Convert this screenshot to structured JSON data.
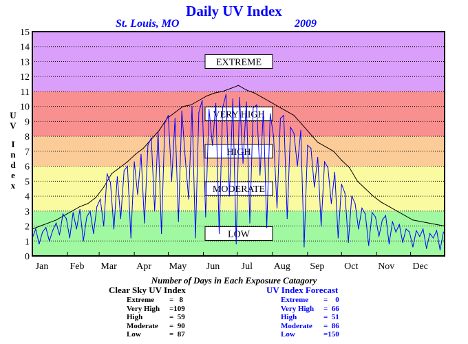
{
  "header": {
    "title": "Daily UV Index",
    "location": "St. Louis, MO",
    "year": "2009"
  },
  "axis": {
    "ylabel_letters": [
      "U",
      "V",
      "I",
      "n",
      "d",
      "e",
      "x"
    ]
  },
  "categories_legend": [
    {
      "label": "EXTREME",
      "y": 13
    },
    {
      "label": "VERY HIGH",
      "y": 9.5
    },
    {
      "label": "HIGH",
      "y": 7
    },
    {
      "label": "MODERATE",
      "y": 4.5
    },
    {
      "label": "LOW",
      "y": 1.5
    }
  ],
  "colors": {
    "extreme": "#d99ffb",
    "very_high": "#f99090",
    "high": "#fccc98",
    "moderate": "#fafaa0",
    "low": "#a0f8a0",
    "clear_sky_line": "#000000",
    "forecast_line": "#0000ff"
  },
  "summary": {
    "title": "Number of Days in Each Exposure Catagory",
    "clear_sky": {
      "heading": "Clear Sky UV Index",
      "rows": [
        {
          "label": "Extreme",
          "value": "=   8"
        },
        {
          "label": "Very High",
          "value": "=109"
        },
        {
          "label": "High",
          "value": "=  59"
        },
        {
          "label": "Moderate",
          "value": "=  90"
        },
        {
          "label": "Low",
          "value": "=  87"
        }
      ]
    },
    "forecast": {
      "heading": "UV Index Forecast",
      "rows": [
        {
          "label": "Extreme",
          "value": "=    0"
        },
        {
          "label": "Very High",
          "value": "=  66"
        },
        {
          "label": "High",
          "value": "=  51"
        },
        {
          "label": "Moderate",
          "value": "=  86"
        },
        {
          "label": "Low",
          "value": "=150"
        }
      ]
    }
  },
  "chart_data": {
    "type": "line",
    "title": "Daily UV Index",
    "ylabel": "UV Index",
    "xlabel": "",
    "ylim": [
      0,
      15
    ],
    "xlim": [
      1,
      365
    ],
    "yticks": [
      0,
      1,
      2,
      3,
      4,
      5,
      6,
      7,
      8,
      9,
      10,
      11,
      12,
      13,
      14,
      15
    ],
    "xticks": [
      {
        "label": "Jan",
        "day": 1
      },
      {
        "label": "Feb",
        "day": 32
      },
      {
        "label": "Mar",
        "day": 60
      },
      {
        "label": "Apr",
        "day": 91
      },
      {
        "label": "May",
        "day": 121
      },
      {
        "label": "Jun",
        "day": 152
      },
      {
        "label": "Jul",
        "day": 182
      },
      {
        "label": "Aug",
        "day": 213
      },
      {
        "label": "Sep",
        "day": 244
      },
      {
        "label": "Oct",
        "day": 274
      },
      {
        "label": "Nov",
        "day": 305
      },
      {
        "label": "Dec",
        "day": 335
      }
    ],
    "grid": true,
    "bands": [
      {
        "name": "LOW",
        "from": 0,
        "to": 3
      },
      {
        "name": "MODERATE",
        "from": 3,
        "to": 6
      },
      {
        "name": "HIGH",
        "from": 6,
        "to": 8
      },
      {
        "name": "VERY HIGH",
        "from": 8,
        "to": 11
      },
      {
        "name": "EXTREME",
        "from": 11,
        "to": 15
      }
    ],
    "series": [
      {
        "name": "Clear Sky UV Index",
        "color": "#000000",
        "x": [
          1,
          8,
          15,
          22,
          29,
          36,
          43,
          50,
          57,
          64,
          71,
          78,
          85,
          92,
          99,
          106,
          113,
          120,
          127,
          134,
          141,
          148,
          155,
          162,
          169,
          176,
          183,
          190,
          197,
          204,
          211,
          218,
          225,
          232,
          239,
          246,
          253,
          260,
          267,
          274,
          281,
          288,
          295,
          302,
          309,
          316,
          323,
          330,
          337,
          344,
          351,
          358,
          365
        ],
        "values": [
          1.8,
          2.0,
          2.2,
          2.4,
          2.7,
          3.0,
          3.3,
          3.5,
          3.9,
          4.6,
          5.5,
          5.9,
          6.3,
          6.8,
          7.2,
          7.8,
          8.4,
          9.2,
          9.6,
          10.0,
          10.1,
          10.4,
          10.7,
          10.9,
          11.0,
          11.2,
          11.4,
          11.1,
          10.9,
          10.6,
          10.3,
          10.0,
          9.7,
          9.4,
          8.8,
          8.2,
          7.6,
          7.3,
          7.0,
          6.4,
          5.9,
          5.0,
          4.5,
          4.0,
          3.6,
          3.3,
          3.0,
          2.7,
          2.4,
          2.3,
          2.2,
          2.1,
          2.0
        ]
      },
      {
        "name": "UV Index Forecast",
        "color": "#0000ff",
        "x": [
          1,
          4,
          7,
          10,
          13,
          16,
          19,
          22,
          25,
          28,
          31,
          34,
          37,
          40,
          43,
          46,
          49,
          52,
          55,
          58,
          61,
          64,
          67,
          70,
          73,
          76,
          79,
          82,
          85,
          88,
          91,
          94,
          97,
          100,
          103,
          106,
          109,
          112,
          115,
          118,
          121,
          124,
          127,
          130,
          133,
          136,
          139,
          142,
          145,
          148,
          151,
          154,
          157,
          160,
          163,
          166,
          169,
          172,
          175,
          178,
          181,
          184,
          187,
          190,
          193,
          196,
          199,
          202,
          205,
          208,
          211,
          214,
          217,
          220,
          223,
          226,
          229,
          232,
          235,
          238,
          241,
          244,
          247,
          250,
          253,
          256,
          259,
          262,
          265,
          268,
          271,
          274,
          277,
          280,
          283,
          286,
          289,
          292,
          295,
          298,
          301,
          304,
          307,
          310,
          313,
          316,
          319,
          322,
          325,
          328,
          331,
          334,
          337,
          340,
          343,
          346,
          349,
          352,
          355,
          358,
          361,
          364
        ],
        "values": [
          1.2,
          1.8,
          0.8,
          1.6,
          1.9,
          1.0,
          1.7,
          2.2,
          1.4,
          2.8,
          2.5,
          1.2,
          2.9,
          1.8,
          3.1,
          1.0,
          2.6,
          3.0,
          1.5,
          3.3,
          3.8,
          2.0,
          5.5,
          4.9,
          1.8,
          5.3,
          2.5,
          5.7,
          6.0,
          1.2,
          6.3,
          4.1,
          6.8,
          2.2,
          7.4,
          7.9,
          3.0,
          8.3,
          1.5,
          8.9,
          9.4,
          5.0,
          9.2,
          2.3,
          9.7,
          6.5,
          3.8,
          10.0,
          1.2,
          9.6,
          10.4,
          2.6,
          9.8,
          7.4,
          10.2,
          1.5,
          9.9,
          10.8,
          4.0,
          10.5,
          0.8,
          10.6,
          6.2,
          10.3,
          2.2,
          9.9,
          10.1,
          5.4,
          9.7,
          1.9,
          9.5,
          8.0,
          3.2,
          9.2,
          9.4,
          2.5,
          8.6,
          8.2,
          6.0,
          8.4,
          0.6,
          7.4,
          7.2,
          4.6,
          6.6,
          2.0,
          6.3,
          5.9,
          3.5,
          5.6,
          1.2,
          4.8,
          4.2,
          0.9,
          4.0,
          3.5,
          1.8,
          3.2,
          2.8,
          0.7,
          2.9,
          2.6,
          1.3,
          2.4,
          2.7,
          0.8,
          2.3,
          1.6,
          2.1,
          0.9,
          1.8,
          1.6,
          0.6,
          1.7,
          1.3,
          1.8,
          0.5,
          1.5,
          1.2,
          1.7,
          0.4,
          1.6
        ]
      }
    ]
  }
}
